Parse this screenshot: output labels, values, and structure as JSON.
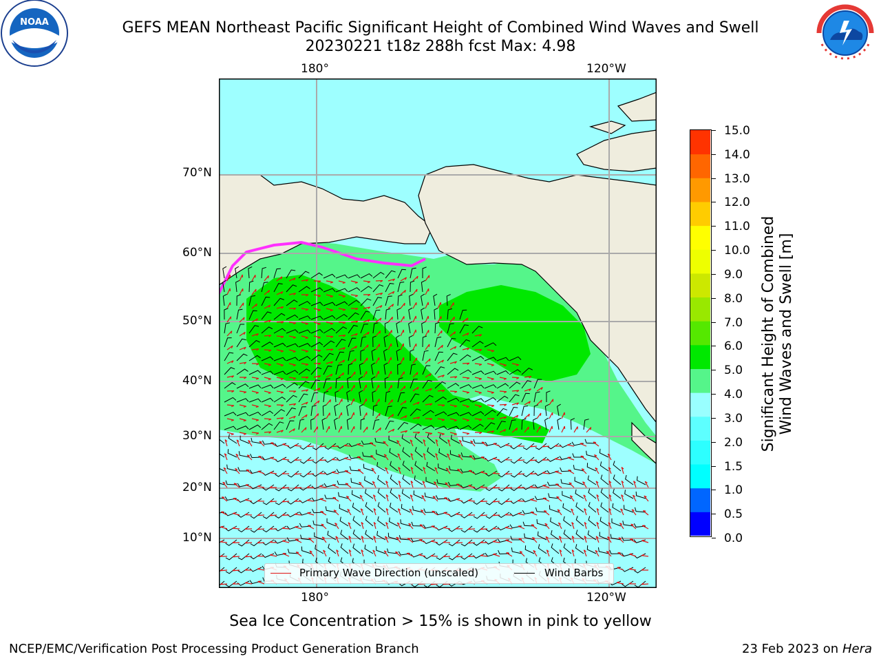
{
  "header": {
    "title_line1": "GEFS MEAN Northeast Pacific Significant Height of Combined Wind Waves and Swell",
    "title_line2": "20230221 t18z 288h fcst   Max: 4.98"
  },
  "logos": {
    "left_text": "NOAA",
    "left_icon": "noaa-logo",
    "right_text": "NATIONAL WEATHER SERVICE",
    "right_icon": "nws-logo"
  },
  "map": {
    "lon_labels_top": [
      "180°",
      "120°W"
    ],
    "lon_labels_bottom": [
      "180°",
      "120°W"
    ],
    "lat_labels": [
      "70°N",
      "60°N",
      "50°N",
      "40°N",
      "30°N",
      "20°N",
      "10°N"
    ],
    "colors": {
      "land": "#efedde",
      "ocean_low": "#9effff",
      "ocean_mid": "#55f58a",
      "ocean_high": "#00e800",
      "ice_edge": "#ff30ff",
      "arrow": "#e01010",
      "barb": "#000000"
    },
    "legend": {
      "wave_label": "Primary Wave Direction (unscaled)",
      "wind_label": "Wind Barbs"
    },
    "note": "Sea Ice Concentration > 15% is shown in pink to yellow"
  },
  "colorbar": {
    "label_line1": "Significant Height of Combined",
    "label_line2": "Wind Waves and Swell [m]",
    "ticks": [
      "15.0",
      "14.0",
      "13.0",
      "12.0",
      "11.0",
      "10.0",
      "9.0",
      "8.0",
      "7.0",
      "6.0",
      "5.0",
      "4.0",
      "3.0",
      "2.0",
      "1.5",
      "1.0",
      "0.5",
      "0.0"
    ],
    "colors": [
      "#0000ff",
      "#0066ff",
      "#00ffff",
      "#2dffff",
      "#5dffff",
      "#99ffff",
      "#55f58a",
      "#00e800",
      "#55e800",
      "#99e800",
      "#cce800",
      "#eeff00",
      "#ffff00",
      "#ffcc00",
      "#ff9900",
      "#ff6600",
      "#ff3300",
      "#ff0000"
    ]
  },
  "footer": {
    "left": "NCEP/EMC/Verification Post Processing Product Generation Branch",
    "right_date": "23 Feb 2023 on",
    "right_host": "Hera"
  }
}
